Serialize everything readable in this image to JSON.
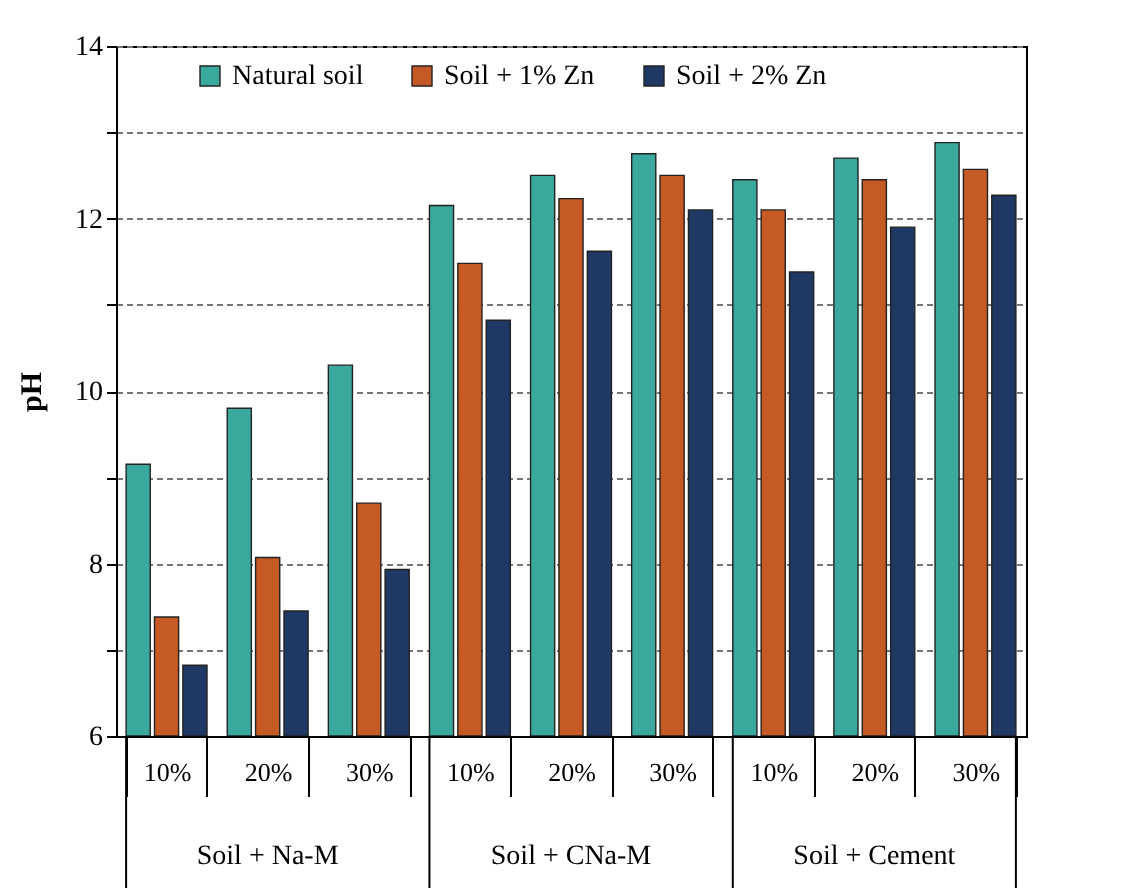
{
  "chart_data": {
    "type": "bar",
    "ylabel": "pH",
    "categories": [
      "10%",
      "20%",
      "30%",
      "10%",
      "20%",
      "30%",
      "10%",
      "20%",
      "30%"
    ],
    "annotations": [
      "Soil + Na-M",
      "Soil + CNa-M",
      "Soil + Cement"
    ],
    "series": [
      {
        "name": "Natural soil",
        "color": "#3aa89c",
        "values": [
          9.15,
          9.8,
          10.3,
          12.15,
          12.5,
          12.75,
          12.45,
          12.7,
          12.88
        ]
      },
      {
        "name": "Soil + 1% Zn",
        "color": "#c65a24",
        "values": [
          7.38,
          8.07,
          8.7,
          11.48,
          12.23,
          12.5,
          12.1,
          12.45,
          12.57
        ]
      },
      {
        "name": "Soil + 2% Zn",
        "color": "#1f3864",
        "values": [
          6.82,
          7.45,
          7.93,
          10.82,
          11.62,
          12.1,
          11.38,
          11.9,
          12.27
        ]
      }
    ],
    "ylim": [
      6,
      14
    ],
    "yticks": [
      6,
      {
        "value": 7,
        "label": null
      },
      8,
      {
        "value": 9,
        "label": null
      },
      10,
      {
        "value": 11,
        "label": null
      },
      12,
      {
        "value": 13,
        "label": null
      },
      14
    ],
    "grid": "y",
    "legend": "top"
  }
}
